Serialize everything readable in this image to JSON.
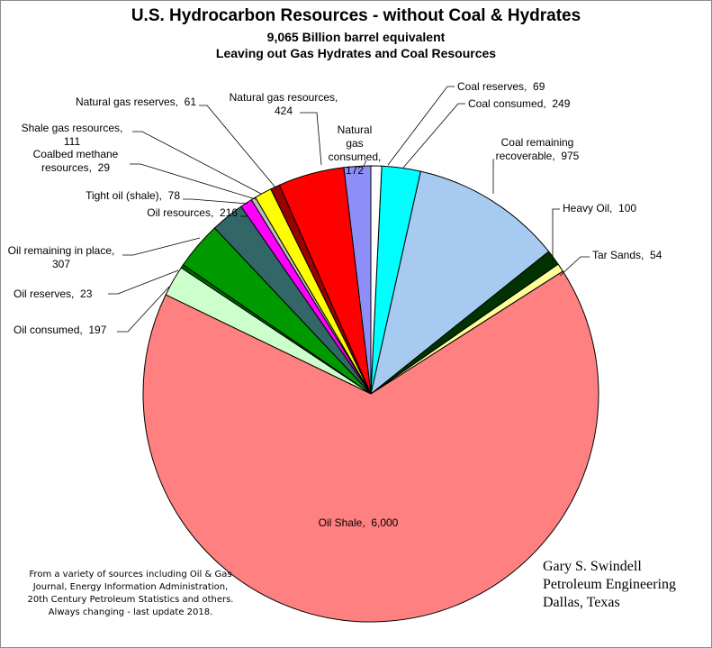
{
  "chart_data": {
    "type": "pie",
    "title": "U.S. Hydrocarbon Resources - without Coal & Hydrates",
    "subtitle": "9,065 Billion barrel equivalent",
    "subtitle2": "Leaving out Gas Hydrates and Coal Resources",
    "slices": [
      {
        "name": "Natural gas consumed",
        "value": 172,
        "color": "#8e8ef8",
        "label": "Natural gas consumed, 172",
        "label_lines": [
          "Natural",
          "gas",
          "consumed,",
          "172"
        ]
      },
      {
        "name": "Natural gas resources",
        "value": 424,
        "color": "#ff0000",
        "label": "Natural gas resources, 424",
        "label_lines": [
          "Natural gas resources,",
          "424"
        ]
      },
      {
        "name": "Natural gas reserves",
        "value": 61,
        "color": "#990000",
        "label": "Natural gas reserves, 61",
        "label_lines": [
          "Natural gas reserves,  61"
        ]
      },
      {
        "name": "Shale gas resources",
        "value": 111,
        "color": "#ffff00",
        "label": "Shale gas resources, 111",
        "label_lines": [
          "Shale gas resources,",
          "111"
        ]
      },
      {
        "name": "Coalbed methane resources",
        "value": 29,
        "color": "#bdbdbd",
        "label": "Coalbed methane resources, 29",
        "label_lines": [
          "Coalbed methane",
          "resources,  29"
        ]
      },
      {
        "name": "Tight oil (shale)",
        "value": 78,
        "color": "#ff00ff",
        "label": "Tight oil (shale), 78",
        "label_lines": [
          "Tight oil (shale),  78"
        ]
      },
      {
        "name": "Oil resources",
        "value": 216,
        "color": "#336666",
        "label": "Oil resources, 216",
        "label_lines": [
          "Oil resources,  216"
        ]
      },
      {
        "name": "Oil remaining in place",
        "value": 307,
        "color": "#009900",
        "label": "Oil remaining in place, 307",
        "label_lines": [
          "Oil remaining in place,",
          "307"
        ]
      },
      {
        "name": "Oil reserves",
        "value": 23,
        "color": "#006600",
        "label": "Oil reserves, 23",
        "label_lines": [
          "Oil reserves,  23"
        ]
      },
      {
        "name": "Oil consumed",
        "value": 197,
        "color": "#ccffcc",
        "label": "Oil consumed, 197",
        "label_lines": [
          "Oil consumed,  197"
        ]
      },
      {
        "name": "Oil Shale",
        "value": 6000,
        "color": "#ff8080",
        "label": "Oil Shale, 6,000",
        "label_lines": [
          "Oil Shale,  6,000"
        ]
      },
      {
        "name": "Tar Sands",
        "value": 54,
        "color": "#ffff99",
        "label": "Tar Sands, 54",
        "label_lines": [
          "Tar Sands,  54"
        ]
      },
      {
        "name": "Heavy Oil",
        "value": 100,
        "color": "#003300",
        "label": "Heavy Oil, 100",
        "label_lines": [
          "Heavy Oil,  100"
        ]
      },
      {
        "name": "Coal remaining recoverable",
        "value": 975,
        "color": "#a6caf0",
        "label": "Coal remaining recoverable, 975",
        "label_lines": [
          "Coal remaining",
          "recoverable,  975"
        ]
      },
      {
        "name": "Coal consumed",
        "value": 249,
        "color": "#00ffff",
        "label": "Coal consumed, 249",
        "label_lines": [
          "Coal consumed,  249"
        ]
      },
      {
        "name": "Coal reserves",
        "value": 69,
        "color": "#ffffff",
        "label": "Coal reserves, 69",
        "label_lines": [
          "Coal reserves,  69"
        ]
      }
    ],
    "legend": "none"
  },
  "note_lines": [
    "From a variety of sources including Oil & Gas",
    "Journal, Energy Information Administration,",
    "20th Century Petroleum Statistics and others.",
    "Always changing - last update 2018."
  ],
  "author_lines": [
    "Gary S. Swindell",
    "Petroleum Engineering",
    "Dallas, Texas"
  ]
}
